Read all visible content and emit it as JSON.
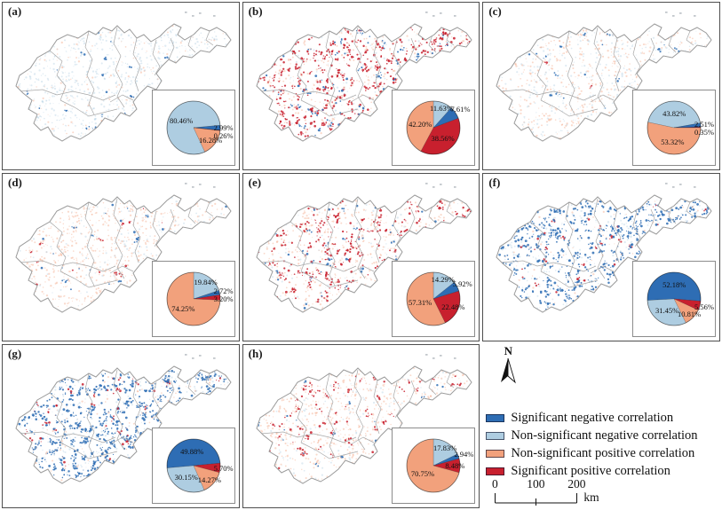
{
  "colors": {
    "significant_negative": "#2e6db4",
    "non_significant_negative": "#aecde1",
    "non_significant_positive": "#f2a17c",
    "significant_positive": "#c8202e",
    "map_boundary": "#9a9a9a",
    "panel_border": "#4e4e4e"
  },
  "north_arrow": {
    "label": "N"
  },
  "scale_bar": {
    "ticks": [
      "0",
      "100",
      "200"
    ],
    "unit": "km"
  },
  "legend": {
    "items": [
      {
        "key": "significant_negative",
        "label": "Significant negative correlation"
      },
      {
        "key": "non_significant_negative",
        "label": "Non-significant negative correlation"
      },
      {
        "key": "non_significant_positive",
        "label": "Non-significant positive correlation"
      },
      {
        "key": "significant_positive",
        "label": "Significant positive correlation"
      }
    ]
  },
  "chart_data": [
    {
      "panel": "(a)",
      "type": "pie",
      "legend_position": "inset-bottom-right",
      "start_angle": 155,
      "slices": [
        {
          "category": "non_significant_negative",
          "value": 80.46,
          "label": "80.46%"
        },
        {
          "category": "significant_negative",
          "value": 2.99,
          "label": "2.99%"
        },
        {
          "category": "significant_positive",
          "value": 0.26,
          "label": "0.26%"
        },
        {
          "category": "non_significant_positive",
          "value": 16.28,
          "label": "16.28%"
        }
      ]
    },
    {
      "panel": "(b)",
      "type": "pie",
      "legend_position": "inset-bottom-right",
      "start_angle": 0,
      "slices": [
        {
          "category": "non_significant_negative",
          "value": 11.63,
          "label": "11.63%"
        },
        {
          "category": "significant_negative",
          "value": 7.61,
          "label": "7.61%"
        },
        {
          "category": "significant_positive",
          "value": 38.56,
          "label": "38.56%"
        },
        {
          "category": "non_significant_positive",
          "value": 42.2,
          "label": "42.20%"
        }
      ]
    },
    {
      "panel": "(c)",
      "type": "pie",
      "legend_position": "inset-bottom-right",
      "start_angle": 282,
      "slices": [
        {
          "category": "non_significant_negative",
          "value": 43.82,
          "label": "43.82%"
        },
        {
          "category": "significant_negative",
          "value": 2.51,
          "label": "2.51%"
        },
        {
          "category": "significant_positive",
          "value": 0.35,
          "label": "0.35%"
        },
        {
          "category": "non_significant_positive",
          "value": 53.32,
          "label": "53.32%"
        }
      ]
    },
    {
      "panel": "(d)",
      "type": "pie",
      "legend_position": "inset-bottom-right",
      "start_angle": 0,
      "slices": [
        {
          "category": "non_significant_negative",
          "value": 19.84,
          "label": "19.84%"
        },
        {
          "category": "significant_negative",
          "value": 2.72,
          "label": "2.72%"
        },
        {
          "category": "significant_positive",
          "value": 3.2,
          "label": "3.20%"
        },
        {
          "category": "non_significant_positive",
          "value": 74.25,
          "label": "74.25%"
        }
      ]
    },
    {
      "panel": "(e)",
      "type": "pie",
      "legend_position": "inset-bottom-right",
      "start_angle": 0,
      "slices": [
        {
          "category": "non_significant_negative",
          "value": 14.29,
          "label": "14.29%"
        },
        {
          "category": "significant_negative",
          "value": 5.92,
          "label": "5.92%"
        },
        {
          "category": "significant_positive",
          "value": 22.48,
          "label": "22.48%"
        },
        {
          "category": "non_significant_positive",
          "value": 57.31,
          "label": "57.31%"
        }
      ]
    },
    {
      "panel": "(f)",
      "type": "pie",
      "legend_position": "inset-bottom-right",
      "start_angle": 267,
      "slices": [
        {
          "category": "significant_negative",
          "value": 52.18,
          "label": "52.18%"
        },
        {
          "category": "significant_positive",
          "value": 5.56,
          "label": "5.56%"
        },
        {
          "category": "non_significant_positive",
          "value": 10.81,
          "label": "10.81%"
        },
        {
          "category": "non_significant_negative",
          "value": 31.45,
          "label": "31.45%"
        }
      ]
    },
    {
      "panel": "(g)",
      "type": "pie",
      "legend_position": "inset-bottom-right",
      "start_angle": 265,
      "slices": [
        {
          "category": "significant_negative",
          "value": 49.88,
          "label": "49.88%"
        },
        {
          "category": "significant_positive",
          "value": 5.7,
          "label": "5.70%"
        },
        {
          "category": "non_significant_positive",
          "value": 14.27,
          "label": "14.27%"
        },
        {
          "category": "non_significant_negative",
          "value": 30.15,
          "label": "30.15%"
        }
      ]
    },
    {
      "panel": "(h)",
      "type": "pie",
      "legend_position": "inset-bottom-right",
      "start_angle": 0,
      "slices": [
        {
          "category": "non_significant_negative",
          "value": 17.83,
          "label": "17.83%"
        },
        {
          "category": "significant_negative",
          "value": 2.94,
          "label": "2.94%"
        },
        {
          "category": "significant_positive",
          "value": 8.48,
          "label": "8.48%"
        },
        {
          "category": "non_significant_positive",
          "value": 70.75,
          "label": "70.75%"
        }
      ]
    }
  ]
}
